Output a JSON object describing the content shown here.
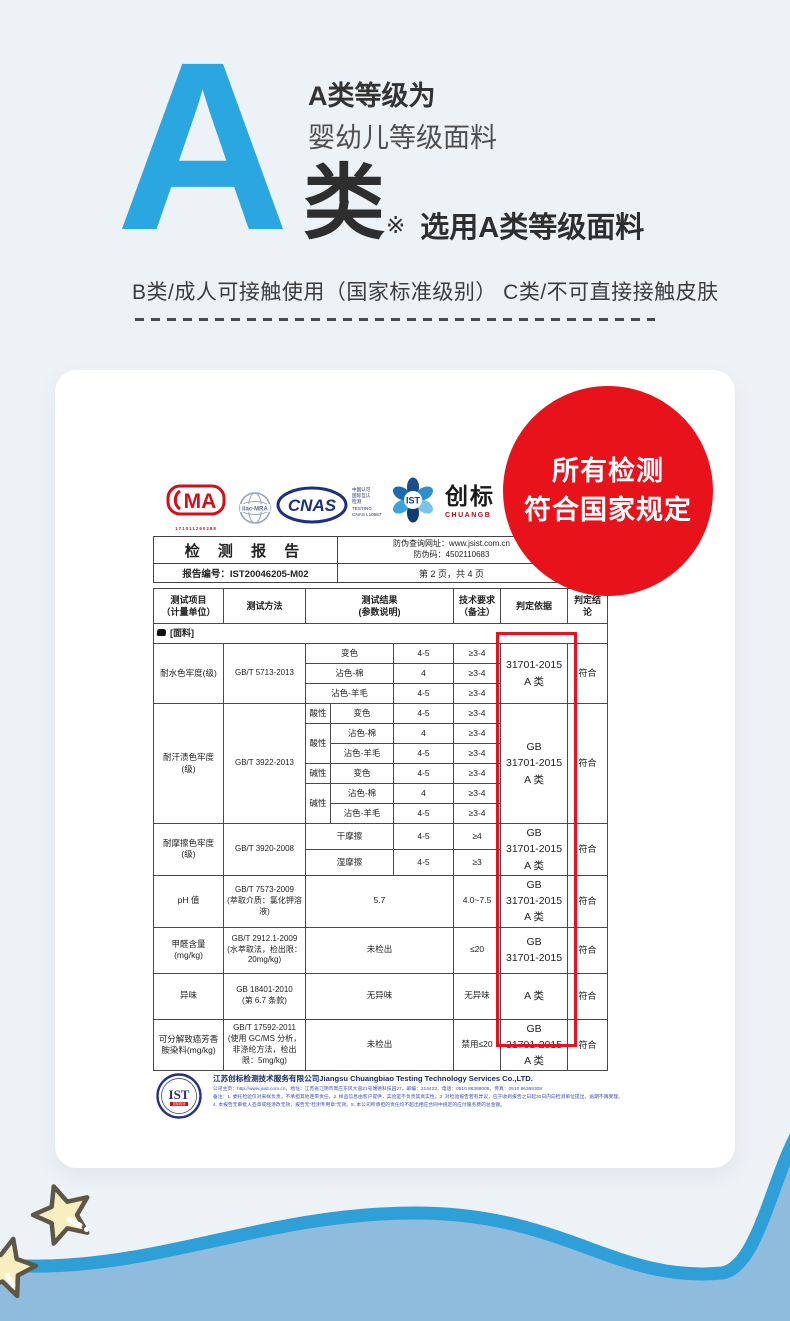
{
  "colors": {
    "accent-blue": "#2aa7e1",
    "badge-red": "#e8121b",
    "wave-stroke": "#2f9fd8",
    "wave-fill": "#8fbcdc",
    "star-fill": "#f8eec0",
    "star-stroke": "#5e5748",
    "navy": "#1d2f7f"
  },
  "hero": {
    "big_letter": "A",
    "title": "A类等级为",
    "subtitle": "婴幼儿等级面料",
    "grade_char": "类",
    "ref_mark": "※",
    "note": "选用A类等级面料",
    "desc": "B类/成人可接触使用（国家标准级别） C类/不可直接接触皮肤"
  },
  "badge": {
    "line1": "所有检测",
    "line2": "符合国家规定"
  },
  "report": {
    "logos": {
      "cma_text": "MA",
      "cma_number": "171011260288",
      "ilac_text": "ilac-MRA",
      "cnas_text": "CNAS",
      "cnas_side": "中国认可\n国际互认\n检测\nTESTING\nCNAS L10567",
      "ist_text": "IST",
      "brand_cn": "创标",
      "brand_en": "CHUANGB"
    },
    "header": {
      "title": "检 测 报 告",
      "antifake_url": "防伪查询网址：www.jsist.com.cn",
      "antifake_code": "防伪码：4502110683",
      "report_no": "报告编号：IST20046205-M02",
      "page_info": "第 2 页，共 4 页"
    },
    "table": {
      "headers": [
        "测试项目\n（计量单位）",
        "测试方法",
        "测试结果\n(参数说明)",
        "技术要求\n（备注）",
        "判定依据",
        "判定结论"
      ],
      "section": "[面料]",
      "groups": [
        {
          "item": "耐水色牢度(级)",
          "method": "GB/T 5713-2013",
          "basis": "31701-2015\nA 类",
          "verdict": "符合",
          "rows": [
            {
              "res": "变色",
              "resSpan": 2,
              "val": "4-5",
              "req": "≥3-4"
            },
            {
              "res": "沾色-棉",
              "resSpan": 2,
              "val": "4",
              "req": "≥3-4"
            },
            {
              "res": "沾色-羊毛",
              "resSpan": 2,
              "val": "4-5",
              "req": "≥3-4"
            }
          ]
        },
        {
          "item": "耐汗渍色牢度\n(级)",
          "method": "GB/T 3922-2013",
          "basis": "GB\n31701-2015\nA 类",
          "verdict": "符合",
          "rows": [
            {
              "pre": "酸性",
              "preSpan": 1,
              "res": "变色",
              "resSpan": 1,
              "val": "4-5",
              "req": "≥3-4"
            },
            {
              "pre": "酸性",
              "preSpan": 2,
              "res": "沾色-棉",
              "resSpan": 1,
              "val": "4",
              "req": "≥3-4"
            },
            {
              "res": "沾色-羊毛",
              "resSpan": 1,
              "val": "4-5",
              "req": "≥3-4"
            },
            {
              "pre": "碱性",
              "preSpan": 1,
              "res": "变色",
              "resSpan": 1,
              "val": "4-5",
              "req": "≥3-4"
            },
            {
              "pre": "碱性",
              "preSpan": 2,
              "res": "沾色-棉",
              "resSpan": 1,
              "val": "4",
              "req": "≥3-4"
            },
            {
              "res": "沾色-羊毛",
              "resSpan": 1,
              "val": "4-5",
              "req": "≥3-4"
            }
          ]
        },
        {
          "item": "耐摩擦色牢度\n(级)",
          "method": "GB/T 3920-2008",
          "basis": "GB\n31701-2015\nA 类",
          "verdict": "符合",
          "rows": [
            {
              "res": "干摩擦",
              "resSpan": 2,
              "val": "4-5",
              "req": "≥4"
            },
            {
              "res": "湿摩擦",
              "resSpan": 2,
              "val": "4-5",
              "req": "≥3"
            }
          ]
        },
        {
          "item": "pH 值",
          "method": "GB/T 7573-2009\n(萃取介质：氯化钾溶液)",
          "basis": "GB\n31701-2015\nA 类",
          "verdict": "符合",
          "rows": [
            {
              "res": "5.7",
              "resSpan": 3,
              "req": "4.0~7.5"
            }
          ]
        },
        {
          "item": "甲醛含量\n(mg/kg)",
          "method": "GB/T 2912.1-2009\n(水萃取法，检出限：20mg/kg)",
          "basis": "GB\n31701-2015",
          "verdict": "符合",
          "rows": [
            {
              "res": "未检出",
              "resSpan": 3,
              "req": "≤20"
            }
          ]
        },
        {
          "item": "异味",
          "method": "GB 18401-2010\n(第 6.7 条款)",
          "basis": "A 类",
          "verdict": "符合",
          "rows": [
            {
              "res": "无异味",
              "resSpan": 3,
              "req": "无异味"
            }
          ]
        },
        {
          "item": "可分解致癌芳香\n胺染料(mg/kg)",
          "method": "GB/T 17592-2011\n(使用 GC/MS 分析，非涤纶方法，检出限：5mg/kg)",
          "basis": "GB\n31701-2015\nA 类",
          "verdict": "符合",
          "rows": [
            {
              "res": "未检出",
              "resSpan": 3,
              "req": "禁用≤20"
            }
          ]
        }
      ]
    }
  },
  "footer": {
    "stamp_text": "IST",
    "stamp_sub": "创标检测",
    "company": "江苏创标检测技术服务有限公司Jiangsu Chuangbiao Testing Technology Services Co.,LTD.",
    "contact": "公司主页：http://www.jsist.com.cn，地址：江苏省江阴市周庄东风大道21号瑞德科技园27，邮编：214423，电话：0510 86368005，传真：0510 86369308",
    "note1": "备注：1. 委托检验仅对来样负责，不承担其他连带责任。2. 样品信息由客户提供，实验室不负责其真实性。3. 对检验报告若有异议，应于收到报告之日起30日内向检测单位提出，逾期不再受理。",
    "note2": "4. 本报告无审批人签章或经涂改无效，报告无“检测专用章”无效。5. 本公司所承担的责任均不超出相应合同中规定的应付服务费的总金额。"
  }
}
